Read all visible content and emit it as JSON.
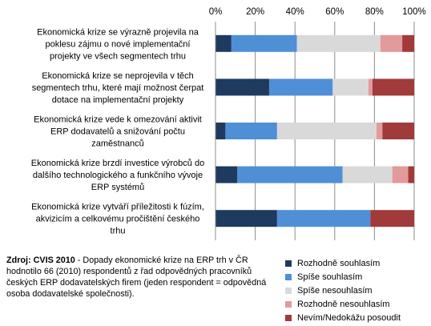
{
  "chart_data": {
    "type": "bar",
    "orientation": "horizontal",
    "stacked": "percent",
    "xlim": [
      0,
      100
    ],
    "x_ticks": [
      "0%",
      "20%",
      "40%",
      "60%",
      "80%",
      "100%"
    ],
    "gridlines": true,
    "legend_position": "bottom-right",
    "categories": [
      "Ekonomická krize se výrazně projevila na poklesu zájmu o nové implementační projekty ve všech segmentech trhu",
      "Ekonomická krize se neprojevila v těch segmentech trhu, které mají možnost čerpat dotace na implementační projekty",
      "Ekonomická krize vede k omezování aktivit ERP dodavatelů a snižování počtu zaměstnanců",
      "Ekonomická krize brzdí investice výrobců do dalšího technologického a funkčního vývoje ERP systémů",
      "Ekonomická krize vytváří příležitosti k fúzím, akvizicím a celkovému pročištění českého trhu"
    ],
    "category_lines": [
      [
        "Ekonomická krize se výrazně projevila na",
        "poklesu zájmu  o nové implementační",
        "projekty ve všech segmentech trhu"
      ],
      [
        "Ekonomická krize se neprojevila v těch",
        "segmentech trhu, které mají možnost čerpat",
        "dotace na implementační projekty"
      ],
      [
        "Ekonomická krize vede k omezování aktivit",
        "ERP dodavatelů a snižování počtu",
        "zaměstnanců"
      ],
      [
        "Ekonomická krize brzdí investice výrobců do",
        "dalšího technologického a funkčního vývoje",
        "ERP systémů"
      ],
      [
        "Ekonomická krize vytváří příležitosti k fúzím,",
        "akvizicím a celkovému pročištění českého",
        "trhu"
      ]
    ],
    "series": [
      {
        "name": "Rozhodně souhlasím",
        "color": "#1f3a5f",
        "values": [
          8,
          27,
          5,
          11,
          31
        ]
      },
      {
        "name": "Spíše souhlasím",
        "color": "#4f8fd6",
        "values": [
          33,
          32,
          26,
          53,
          47
        ]
      },
      {
        "name": "Spíše nesouhlasím",
        "color": "#d9d9d9",
        "values": [
          42,
          18,
          50,
          25,
          0
        ]
      },
      {
        "name": "Rozhodně nesouhlasím",
        "color": "#e39a9a",
        "values": [
          11,
          2,
          3,
          8,
          0
        ]
      },
      {
        "name": "Nevím/Nedokážu posoudit",
        "color": "#a13a3a",
        "values": [
          6,
          21,
          16,
          3,
          22
        ]
      }
    ]
  },
  "source": {
    "label": "Zdroj: CVIS 2010",
    "text": " - Dopady ekonomické krize na ERP trh v ČR hodnotilo 66 (2010) respondentů z řad odpovědných pracovníků českých ERP dodavatelských firem (jeden respondent = odpovědná osoba dodavatelské společnosti)."
  }
}
